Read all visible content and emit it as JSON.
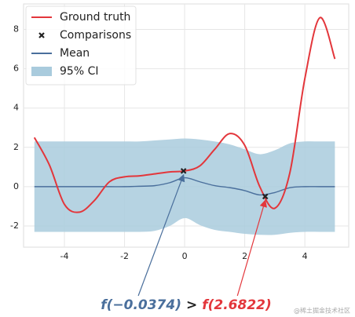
{
  "chart_data": {
    "type": "line",
    "x": [
      -5,
      -4.5,
      -4,
      -3.5,
      -3,
      -2.5,
      -2,
      -1.5,
      -1,
      -0.5,
      0,
      0.5,
      1,
      1.5,
      2,
      2.5,
      3,
      3.5,
      4,
      4.5,
      5
    ],
    "series": [
      {
        "name": "Ground truth",
        "color": "#e3363b",
        "values": [
          2.5,
          1.1,
          -0.9,
          -1.3,
          -0.7,
          0.25,
          0.5,
          0.55,
          0.65,
          0.75,
          0.8,
          1.05,
          1.9,
          2.7,
          2.1,
          0,
          -1.1,
          0.7,
          5.5,
          8.6,
          6.5
        ]
      },
      {
        "name": "Comparisons",
        "color": "#222222",
        "x": [
          -0.0374,
          2.6822
        ],
        "values": [
          0.8,
          -0.5
        ]
      },
      {
        "name": "Mean",
        "color": "#4a6f9c",
        "values": [
          0,
          0,
          0,
          0,
          0,
          0,
          0,
          0.02,
          0.05,
          0.2,
          0.45,
          0.25,
          0.05,
          -0.05,
          -0.2,
          -0.42,
          -0.3,
          -0.05,
          0,
          0,
          0
        ]
      },
      {
        "name": "95% CI",
        "color": "#a9cbdd",
        "upper": [
          2.3,
          2.3,
          2.3,
          2.3,
          2.3,
          2.3,
          2.3,
          2.3,
          2.35,
          2.4,
          2.45,
          2.4,
          2.3,
          2.15,
          1.9,
          1.65,
          1.85,
          2.2,
          2.3,
          2.3,
          2.3
        ],
        "lower": [
          -2.3,
          -2.3,
          -2.3,
          -2.3,
          -2.3,
          -2.3,
          -2.3,
          -2.3,
          -2.25,
          -2.0,
          -1.6,
          -1.95,
          -2.2,
          -2.3,
          -2.4,
          -2.45,
          -2.45,
          -2.35,
          -2.3,
          -2.3,
          -2.3
        ]
      }
    ],
    "xlim": [
      -5.36,
      5.46
    ],
    "ylim": [
      -3.08,
      9.3
    ],
    "xticks": [
      -4,
      -2,
      0,
      2,
      4
    ],
    "yticks": [
      -2,
      0,
      2,
      4,
      6,
      8
    ],
    "grid": true,
    "legend": "upper left",
    "annotation": {
      "left": "f(−0.0374)",
      "left_color": "#4a6f9c",
      "op": ">",
      "right": "f(2.6822)",
      "right_color": "#e3363b"
    },
    "watermark": "@稀土掘金技术社区"
  }
}
